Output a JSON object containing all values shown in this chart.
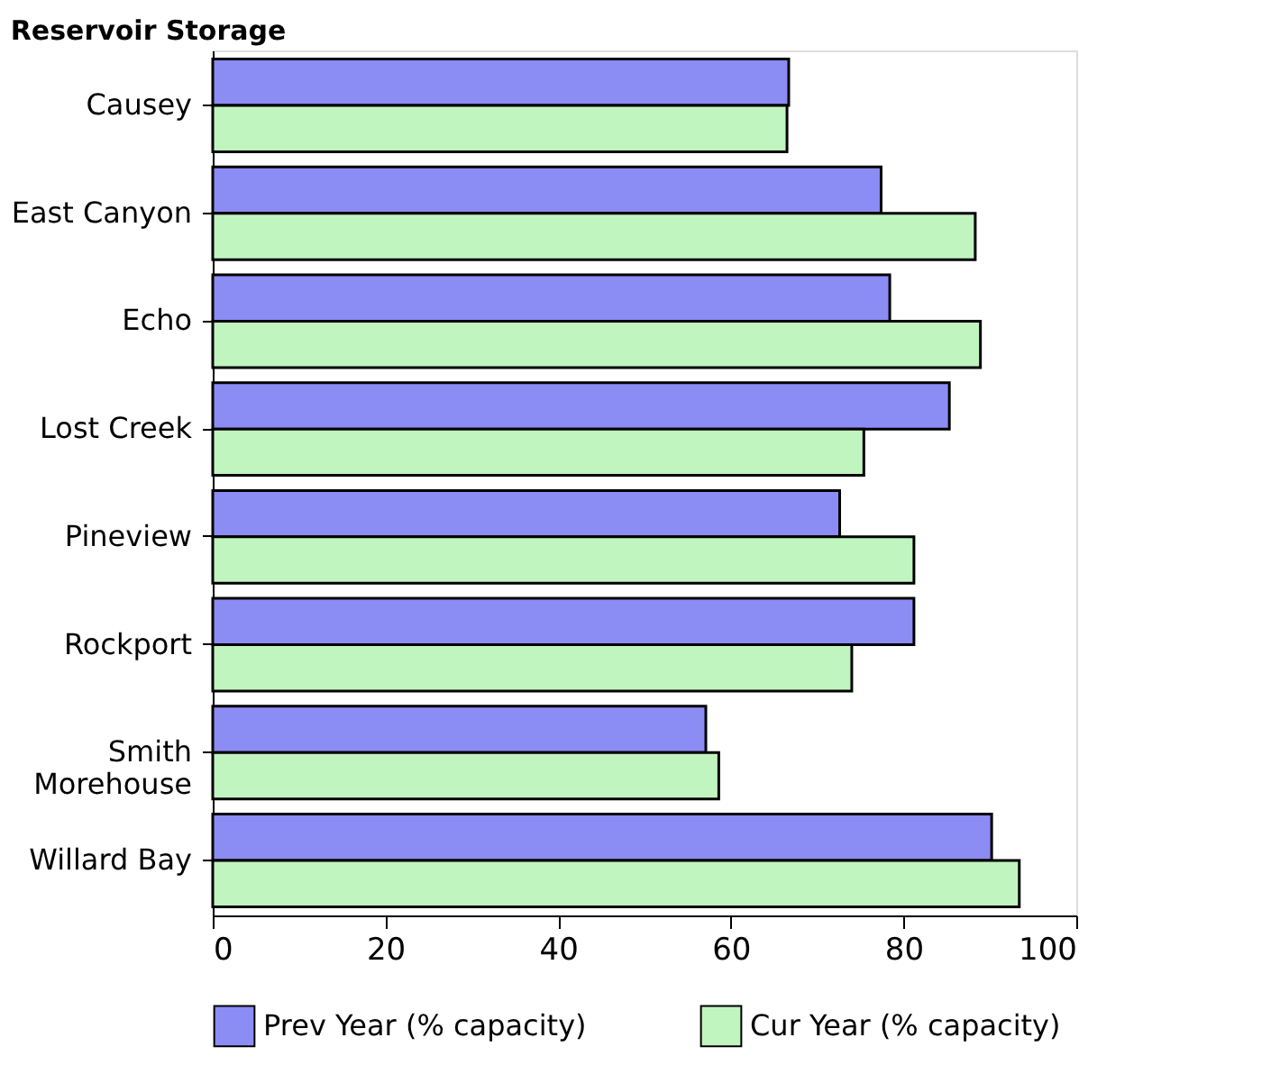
{
  "chart_data": {
    "type": "bar",
    "orientation": "horizontal",
    "title": "Reservoir Storage",
    "categories": [
      "Causey",
      "East Canyon",
      "Echo",
      "Lost Creek",
      "Pineview",
      "Rockport",
      "Smith\nMorehouse",
      "Willard Bay"
    ],
    "series": [
      {
        "name": "Prev Year (% capacity)",
        "color": "#8c8cf5",
        "values": [
          66.7,
          77.4,
          78.4,
          85.3,
          72.6,
          81.2,
          57.1,
          90.2
        ]
      },
      {
        "name": "Cur Year (% capacity)",
        "color": "#c0f5c0",
        "values": [
          66.5,
          88.3,
          88.9,
          75.4,
          81.2,
          74.0,
          58.6,
          93.4
        ]
      }
    ],
    "xlim": [
      0,
      100
    ],
    "xticks": [
      0,
      20,
      40,
      60,
      80,
      100
    ],
    "grid": false,
    "legend": "bottom"
  }
}
